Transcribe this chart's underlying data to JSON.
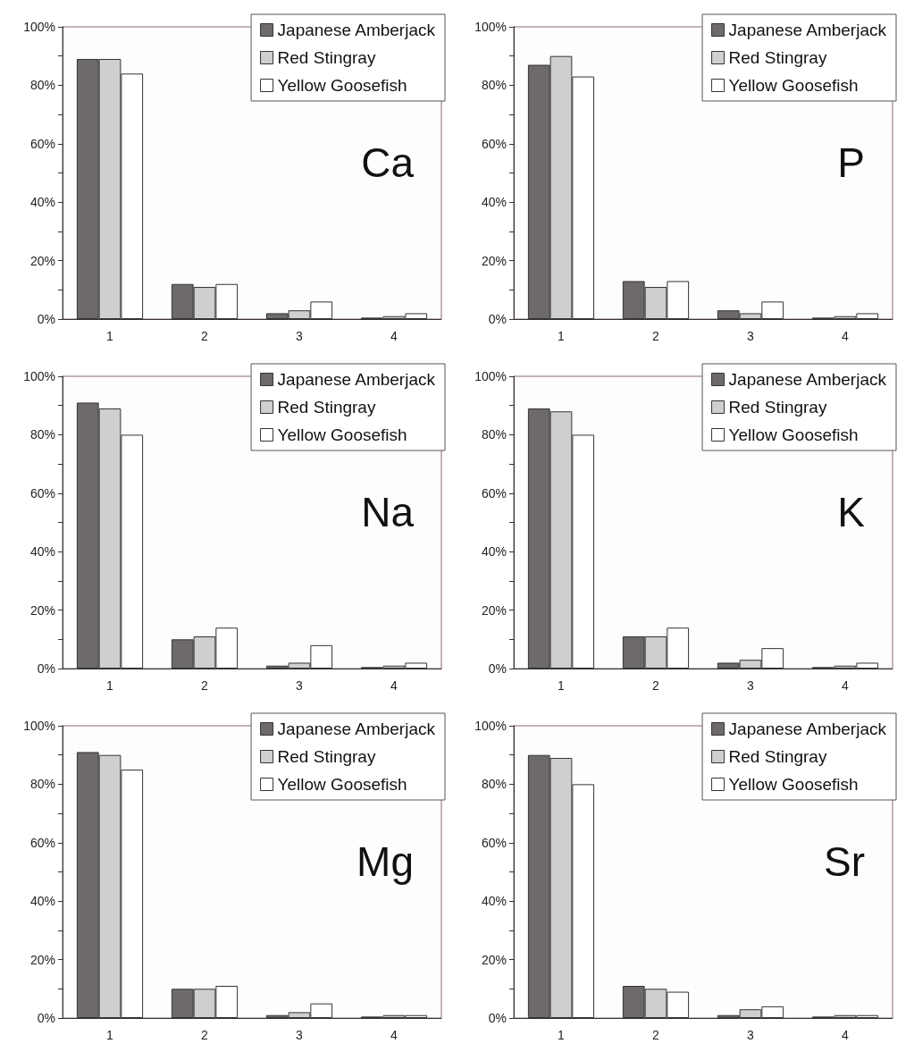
{
  "chart_data": [
    {
      "type": "bar",
      "title": "Ca",
      "categories": [
        "1",
        "2",
        "3",
        "4"
      ],
      "legend": "top right",
      "ylim": [
        0,
        100
      ],
      "yticks": [
        {
          "value": 0,
          "label": "0%"
        },
        {
          "value": 10,
          "label": null
        },
        {
          "value": 20,
          "label": "20%"
        },
        {
          "value": 30,
          "label": null
        },
        {
          "value": 40,
          "label": "40%"
        },
        {
          "value": 50,
          "label": null
        },
        {
          "value": 60,
          "label": "60%"
        },
        {
          "value": 70,
          "label": null
        },
        {
          "value": 80,
          "label": "80%"
        },
        {
          "value": 90,
          "label": null
        },
        {
          "value": 100,
          "label": "100%"
        }
      ],
      "series": [
        {
          "name": "Japanese Amberjack",
          "color": "#6e6a6b",
          "values": [
            89,
            12,
            2,
            0.5
          ]
        },
        {
          "name": "Red Stingray",
          "color": "#d0cfd0",
          "values": [
            89,
            11,
            3,
            1
          ]
        },
        {
          "name": "Yellow Goosefish",
          "color": "#ffffff",
          "values": [
            84,
            12,
            6,
            2
          ]
        }
      ]
    },
    {
      "type": "bar",
      "title": "P",
      "categories": [
        "1",
        "2",
        "3",
        "4"
      ],
      "legend": "top right",
      "ylim": [
        0,
        100
      ],
      "yticks": [
        {
          "value": 0,
          "label": "0%"
        },
        {
          "value": 10,
          "label": null
        },
        {
          "value": 20,
          "label": "20%"
        },
        {
          "value": 30,
          "label": null
        },
        {
          "value": 40,
          "label": "40%"
        },
        {
          "value": 50,
          "label": null
        },
        {
          "value": 60,
          "label": "60%"
        },
        {
          "value": 70,
          "label": null
        },
        {
          "value": 80,
          "label": "80%"
        },
        {
          "value": 90,
          "label": null
        },
        {
          "value": 100,
          "label": "100%"
        }
      ],
      "series": [
        {
          "name": "Japanese Amberjack",
          "color": "#6e6a6b",
          "values": [
            87,
            13,
            3,
            0.5
          ]
        },
        {
          "name": "Red Stingray",
          "color": "#d0cfd0",
          "values": [
            90,
            11,
            2,
            1
          ]
        },
        {
          "name": "Yellow Goosefish",
          "color": "#ffffff",
          "values": [
            83,
            13,
            6,
            2
          ]
        }
      ]
    },
    {
      "type": "bar",
      "title": "Na",
      "categories": [
        "1",
        "2",
        "3",
        "4"
      ],
      "legend": "top right",
      "ylim": [
        0,
        100
      ],
      "yticks": [
        {
          "value": 0,
          "label": "0%"
        },
        {
          "value": 10,
          "label": null
        },
        {
          "value": 20,
          "label": "20%"
        },
        {
          "value": 30,
          "label": null
        },
        {
          "value": 40,
          "label": "40%"
        },
        {
          "value": 50,
          "label": null
        },
        {
          "value": 60,
          "label": "60%"
        },
        {
          "value": 70,
          "label": null
        },
        {
          "value": 80,
          "label": "80%"
        },
        {
          "value": 90,
          "label": null
        },
        {
          "value": 100,
          "label": "100%"
        }
      ],
      "series": [
        {
          "name": "Japanese Amberjack",
          "color": "#6e6a6b",
          "values": [
            91,
            10,
            1,
            0.5
          ]
        },
        {
          "name": "Red Stingray",
          "color": "#d0cfd0",
          "values": [
            89,
            11,
            2,
            1
          ]
        },
        {
          "name": "Yellow Goosefish",
          "color": "#ffffff",
          "values": [
            80,
            14,
            8,
            2
          ]
        }
      ]
    },
    {
      "type": "bar",
      "title": "K",
      "categories": [
        "1",
        "2",
        "3",
        "4"
      ],
      "legend": "top right",
      "ylim": [
        0,
        100
      ],
      "yticks": [
        {
          "value": 0,
          "label": "0%"
        },
        {
          "value": 10,
          "label": null
        },
        {
          "value": 20,
          "label": "20%"
        },
        {
          "value": 30,
          "label": null
        },
        {
          "value": 40,
          "label": "40%"
        },
        {
          "value": 50,
          "label": null
        },
        {
          "value": 60,
          "label": "60%"
        },
        {
          "value": 70,
          "label": null
        },
        {
          "value": 80,
          "label": "80%"
        },
        {
          "value": 90,
          "label": null
        },
        {
          "value": 100,
          "label": "100%"
        }
      ],
      "series": [
        {
          "name": "Japanese Amberjack",
          "color": "#6e6a6b",
          "values": [
            89,
            11,
            2,
            0.5
          ]
        },
        {
          "name": "Red Stingray",
          "color": "#d0cfd0",
          "values": [
            88,
            11,
            3,
            1
          ]
        },
        {
          "name": "Yellow Goosefish",
          "color": "#ffffff",
          "values": [
            80,
            14,
            7,
            2
          ]
        }
      ]
    },
    {
      "type": "bar",
      "title": "Mg",
      "categories": [
        "1",
        "2",
        "3",
        "4"
      ],
      "legend": "top right",
      "ylim": [
        0,
        100
      ],
      "yticks": [
        {
          "value": 0,
          "label": "0%"
        },
        {
          "value": 10,
          "label": null
        },
        {
          "value": 20,
          "label": "20%"
        },
        {
          "value": 30,
          "label": null
        },
        {
          "value": 40,
          "label": "40%"
        },
        {
          "value": 50,
          "label": null
        },
        {
          "value": 60,
          "label": "60%"
        },
        {
          "value": 70,
          "label": null
        },
        {
          "value": 80,
          "label": "80%"
        },
        {
          "value": 90,
          "label": null
        },
        {
          "value": 100,
          "label": "100%"
        }
      ],
      "series": [
        {
          "name": "Japanese Amberjack",
          "color": "#6e6a6b",
          "values": [
            91,
            10,
            1,
            0.5
          ]
        },
        {
          "name": "Red Stingray",
          "color": "#d0cfd0",
          "values": [
            90,
            10,
            2,
            1
          ]
        },
        {
          "name": "Yellow Goosefish",
          "color": "#ffffff",
          "values": [
            85,
            11,
            5,
            1
          ]
        }
      ]
    },
    {
      "type": "bar",
      "title": "Sr",
      "categories": [
        "1",
        "2",
        "3",
        "4"
      ],
      "legend": "top right",
      "ylim": [
        0,
        100
      ],
      "yticks": [
        {
          "value": 0,
          "label": "0%"
        },
        {
          "value": 10,
          "label": null
        },
        {
          "value": 20,
          "label": "20%"
        },
        {
          "value": 30,
          "label": null
        },
        {
          "value": 40,
          "label": "40%"
        },
        {
          "value": 50,
          "label": null
        },
        {
          "value": 60,
          "label": "60%"
        },
        {
          "value": 70,
          "label": null
        },
        {
          "value": 80,
          "label": "80%"
        },
        {
          "value": 90,
          "label": null
        },
        {
          "value": 100,
          "label": "100%"
        }
      ],
      "series": [
        {
          "name": "Japanese Amberjack",
          "color": "#6e6a6b",
          "values": [
            90,
            11,
            1,
            0.5
          ]
        },
        {
          "name": "Red Stingray",
          "color": "#d0cfd0",
          "values": [
            89,
            10,
            3,
            1
          ]
        },
        {
          "name": "Yellow Goosefish",
          "color": "#ffffff",
          "values": [
            80,
            9,
            4,
            1
          ]
        }
      ]
    }
  ]
}
